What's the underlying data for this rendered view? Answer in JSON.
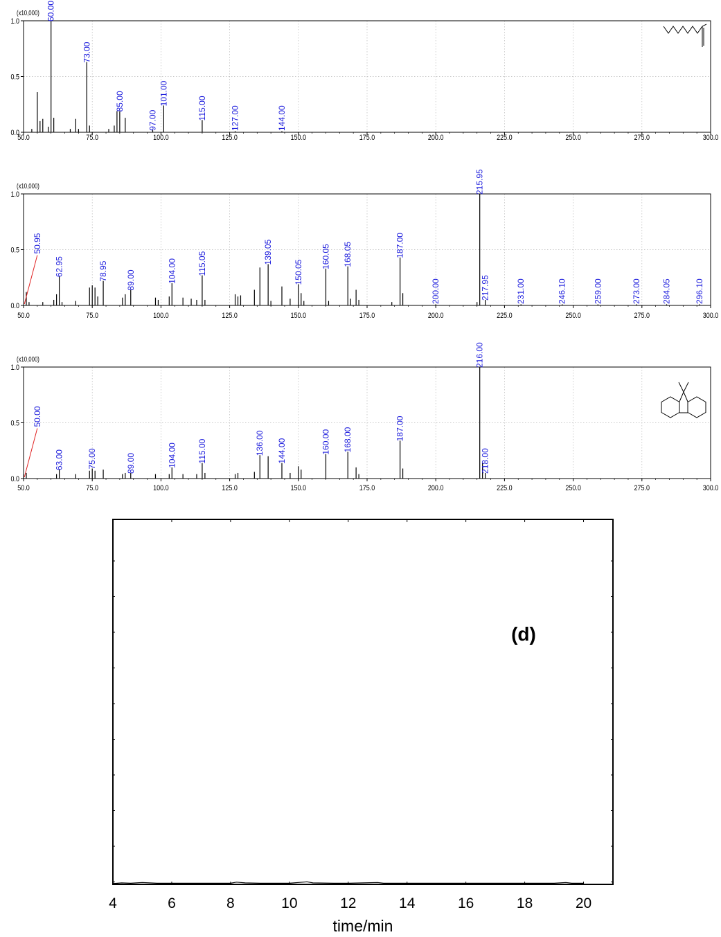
{
  "chart_data": [
    {
      "type": "bar",
      "scale_label": "(x10,000)",
      "xlim": [
        50,
        300
      ],
      "ylim": [
        0,
        1
      ],
      "xticks": [
        "50.0",
        "75.0",
        "100.0",
        "125.0",
        "150.0",
        "175.0",
        "200.0",
        "225.0",
        "250.0",
        "275.0",
        "300.0"
      ],
      "yticks": [
        "0.0",
        "0.5",
        "1.0"
      ],
      "grid": true,
      "structure_icon": "octanoic-acid-structure",
      "peaks": [
        {
          "mz": 53,
          "v": 0.03
        },
        {
          "mz": 55,
          "v": 0.36
        },
        {
          "mz": 56,
          "v": 0.1
        },
        {
          "mz": 57,
          "v": 0.12
        },
        {
          "mz": 59,
          "v": 0.05
        },
        {
          "mz": 60,
          "v": 1.0,
          "label": "60.00"
        },
        {
          "mz": 61,
          "v": 0.13
        },
        {
          "mz": 67,
          "v": 0.03
        },
        {
          "mz": 69,
          "v": 0.12
        },
        {
          "mz": 70,
          "v": 0.03
        },
        {
          "mz": 73,
          "v": 0.63,
          "label": "73.00"
        },
        {
          "mz": 74,
          "v": 0.06
        },
        {
          "mz": 81,
          "v": 0.03
        },
        {
          "mz": 83,
          "v": 0.06
        },
        {
          "mz": 84,
          "v": 0.19
        },
        {
          "mz": 85,
          "v": 0.19,
          "label": "85.00"
        },
        {
          "mz": 87,
          "v": 0.13
        },
        {
          "mz": 97,
          "v": 0.02,
          "label": "97.00"
        },
        {
          "mz": 101,
          "v": 0.24,
          "label": "101.00"
        },
        {
          "mz": 115,
          "v": 0.11,
          "label": "115.00"
        },
        {
          "mz": 127,
          "v": 0.01,
          "label": "127.00"
        },
        {
          "mz": 144,
          "v": 0.01,
          "label": "144.00"
        }
      ]
    },
    {
      "type": "bar",
      "scale_label": "(x10,000)",
      "xlim": [
        50,
        300
      ],
      "ylim": [
        0,
        1
      ],
      "xticks": [
        "50.0",
        "75.0",
        "100.0",
        "125.0",
        "150.0",
        "175.0",
        "200.0",
        "225.0",
        "250.0",
        "275.0",
        "300.0"
      ],
      "yticks": [
        "0.0",
        "0.5",
        "1.0"
      ],
      "grid": true,
      "leader_label": "50.95",
      "peaks": [
        {
          "mz": 51,
          "v": 0.12
        },
        {
          "mz": 52,
          "v": 0.03
        },
        {
          "mz": 57,
          "v": 0.03
        },
        {
          "mz": 61,
          "v": 0.05
        },
        {
          "mz": 62,
          "v": 0.1
        },
        {
          "mz": 63,
          "v": 0.26,
          "label": "62.95"
        },
        {
          "mz": 64,
          "v": 0.03
        },
        {
          "mz": 69,
          "v": 0.04
        },
        {
          "mz": 74,
          "v": 0.16
        },
        {
          "mz": 75,
          "v": 0.18
        },
        {
          "mz": 76,
          "v": 0.16
        },
        {
          "mz": 77,
          "v": 0.08
        },
        {
          "mz": 79,
          "v": 0.22,
          "label": "78.95"
        },
        {
          "mz": 86,
          "v": 0.07
        },
        {
          "mz": 87,
          "v": 0.1
        },
        {
          "mz": 89,
          "v": 0.14,
          "label": "89.00"
        },
        {
          "mz": 98,
          "v": 0.07
        },
        {
          "mz": 99,
          "v": 0.05
        },
        {
          "mz": 103,
          "v": 0.08
        },
        {
          "mz": 104,
          "v": 0.2,
          "label": "104.00"
        },
        {
          "mz": 108,
          "v": 0.07
        },
        {
          "mz": 111,
          "v": 0.06
        },
        {
          "mz": 113,
          "v": 0.05
        },
        {
          "mz": 115,
          "v": 0.27,
          "label": "115.05"
        },
        {
          "mz": 116,
          "v": 0.05
        },
        {
          "mz": 127,
          "v": 0.1
        },
        {
          "mz": 128,
          "v": 0.08
        },
        {
          "mz": 129,
          "v": 0.09
        },
        {
          "mz": 134,
          "v": 0.14
        },
        {
          "mz": 136,
          "v": 0.34
        },
        {
          "mz": 139,
          "v": 0.37,
          "label": "139.05"
        },
        {
          "mz": 140,
          "v": 0.04
        },
        {
          "mz": 144,
          "v": 0.17
        },
        {
          "mz": 147,
          "v": 0.06
        },
        {
          "mz": 150,
          "v": 0.19,
          "label": "150.05"
        },
        {
          "mz": 151,
          "v": 0.11
        },
        {
          "mz": 152,
          "v": 0.04
        },
        {
          "mz": 160,
          "v": 0.33,
          "label": "160.05"
        },
        {
          "mz": 161,
          "v": 0.04
        },
        {
          "mz": 168,
          "v": 0.35,
          "label": "168.05"
        },
        {
          "mz": 169,
          "v": 0.06
        },
        {
          "mz": 171,
          "v": 0.14
        },
        {
          "mz": 172,
          "v": 0.05
        },
        {
          "mz": 184,
          "v": 0.03
        },
        {
          "mz": 187,
          "v": 0.43,
          "label": "187.00"
        },
        {
          "mz": 188,
          "v": 0.11
        },
        {
          "mz": 200,
          "v": 0.01,
          "label": "200.00"
        },
        {
          "mz": 215,
          "v": 0.03
        },
        {
          "mz": 216,
          "v": 1.0,
          "label": "215.95"
        },
        {
          "mz": 218,
          "v": 0.05,
          "label": "217.95"
        },
        {
          "mz": 231,
          "v": 0.01,
          "label": "231.00"
        },
        {
          "mz": 246,
          "v": 0.01,
          "label": "246.10"
        },
        {
          "mz": 259,
          "v": 0.01,
          "label": "259.00"
        },
        {
          "mz": 273,
          "v": 0.01,
          "label": "273.00"
        },
        {
          "mz": 284,
          "v": 0.01,
          "label": "284.05"
        },
        {
          "mz": 296,
          "v": 0.01,
          "label": "296.10"
        }
      ]
    },
    {
      "type": "bar",
      "scale_label": "(x10,000)",
      "xlim": [
        50,
        300
      ],
      "ylim": [
        0,
        1
      ],
      "xticks": [
        "50.0",
        "75.0",
        "100.0",
        "125.0",
        "150.0",
        "175.0",
        "200.0",
        "225.0",
        "250.0",
        "275.0",
        "300.0"
      ],
      "yticks": [
        "0.0",
        "0.5",
        "1.0"
      ],
      "grid": true,
      "leader_label": "50.00",
      "structure_icon": "dibenzothiophene-sulfone-structure",
      "peaks": [
        {
          "mz": 50,
          "v": 0.04
        },
        {
          "mz": 51,
          "v": 0.05
        },
        {
          "mz": 62,
          "v": 0.04
        },
        {
          "mz": 63,
          "v": 0.08,
          "label": "63.00"
        },
        {
          "mz": 69,
          "v": 0.04
        },
        {
          "mz": 74,
          "v": 0.07
        },
        {
          "mz": 75,
          "v": 0.09,
          "label": "75.00"
        },
        {
          "mz": 76,
          "v": 0.07
        },
        {
          "mz": 79,
          "v": 0.08
        },
        {
          "mz": 86,
          "v": 0.04
        },
        {
          "mz": 87,
          "v": 0.05
        },
        {
          "mz": 89,
          "v": 0.05,
          "label": "89.00"
        },
        {
          "mz": 98,
          "v": 0.04
        },
        {
          "mz": 103,
          "v": 0.04
        },
        {
          "mz": 104,
          "v": 0.1,
          "label": "104.00"
        },
        {
          "mz": 108,
          "v": 0.04
        },
        {
          "mz": 113,
          "v": 0.04
        },
        {
          "mz": 115,
          "v": 0.14,
          "label": "115.00"
        },
        {
          "mz": 116,
          "v": 0.05
        },
        {
          "mz": 127,
          "v": 0.04
        },
        {
          "mz": 128,
          "v": 0.05
        },
        {
          "mz": 134,
          "v": 0.06
        },
        {
          "mz": 136,
          "v": 0.21,
          "label": "136.00"
        },
        {
          "mz": 139,
          "v": 0.2
        },
        {
          "mz": 144,
          "v": 0.14,
          "label": "144.00"
        },
        {
          "mz": 147,
          "v": 0.05
        },
        {
          "mz": 150,
          "v": 0.11
        },
        {
          "mz": 151,
          "v": 0.08
        },
        {
          "mz": 160,
          "v": 0.22,
          "label": "160.00"
        },
        {
          "mz": 168,
          "v": 0.24,
          "label": "168.00"
        },
        {
          "mz": 171,
          "v": 0.1
        },
        {
          "mz": 172,
          "v": 0.04
        },
        {
          "mz": 187,
          "v": 0.34,
          "label": "187.00"
        },
        {
          "mz": 188,
          "v": 0.09
        },
        {
          "mz": 216,
          "v": 1.0,
          "label": "216.00"
        },
        {
          "mz": 217,
          "v": 0.14
        },
        {
          "mz": 218,
          "v": 0.05,
          "label": "218.00"
        }
      ]
    },
    {
      "type": "line",
      "panel_label": "(d)",
      "xlabel": "time/min",
      "xlim": [
        4,
        21
      ],
      "xticks": [
        "4",
        "6",
        "8",
        "10",
        "12",
        "14",
        "16",
        "18",
        "20"
      ],
      "x": [
        4.0,
        4.3,
        4.6,
        5.0,
        5.5,
        6.0,
        7.0,
        8.0,
        8.2,
        8.5,
        9.0,
        10.0,
        10.6,
        10.8,
        11.5,
        12.0,
        13.0,
        13.2,
        14.0,
        15.0,
        16.0,
        17.0,
        18.0,
        19.0,
        19.4,
        19.6,
        20.0
      ],
      "y": [
        0.002,
        0.004,
        0.003,
        0.005,
        0.003,
        0.003,
        0.003,
        0.003,
        0.006,
        0.004,
        0.003,
        0.003,
        0.007,
        0.004,
        0.003,
        0.003,
        0.005,
        0.003,
        0.003,
        0.003,
        0.003,
        0.003,
        0.003,
        0.003,
        0.005,
        0.003,
        0.003
      ]
    }
  ]
}
